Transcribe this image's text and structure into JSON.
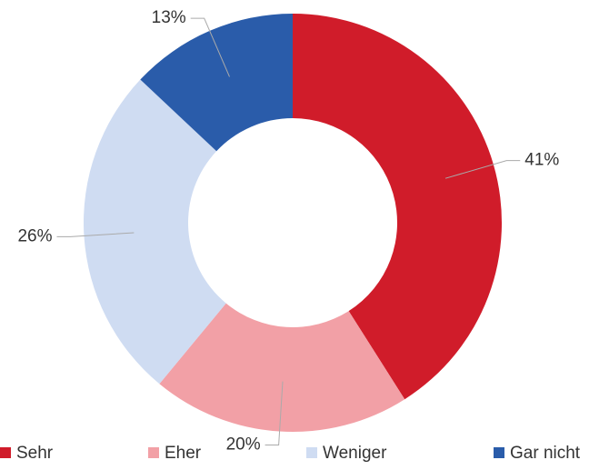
{
  "chart_data": {
    "type": "donut",
    "categories": [
      "Sehr",
      "Eher",
      "Weniger",
      "Gar nicht"
    ],
    "values": [
      41,
      20,
      26,
      13
    ],
    "value_labels": [
      "41%",
      "20%",
      "26%",
      "13%"
    ],
    "colors": [
      "#d01c2a",
      "#f2a0a6",
      "#cfdcf2",
      "#2a5caa"
    ],
    "legend": "bottom"
  }
}
